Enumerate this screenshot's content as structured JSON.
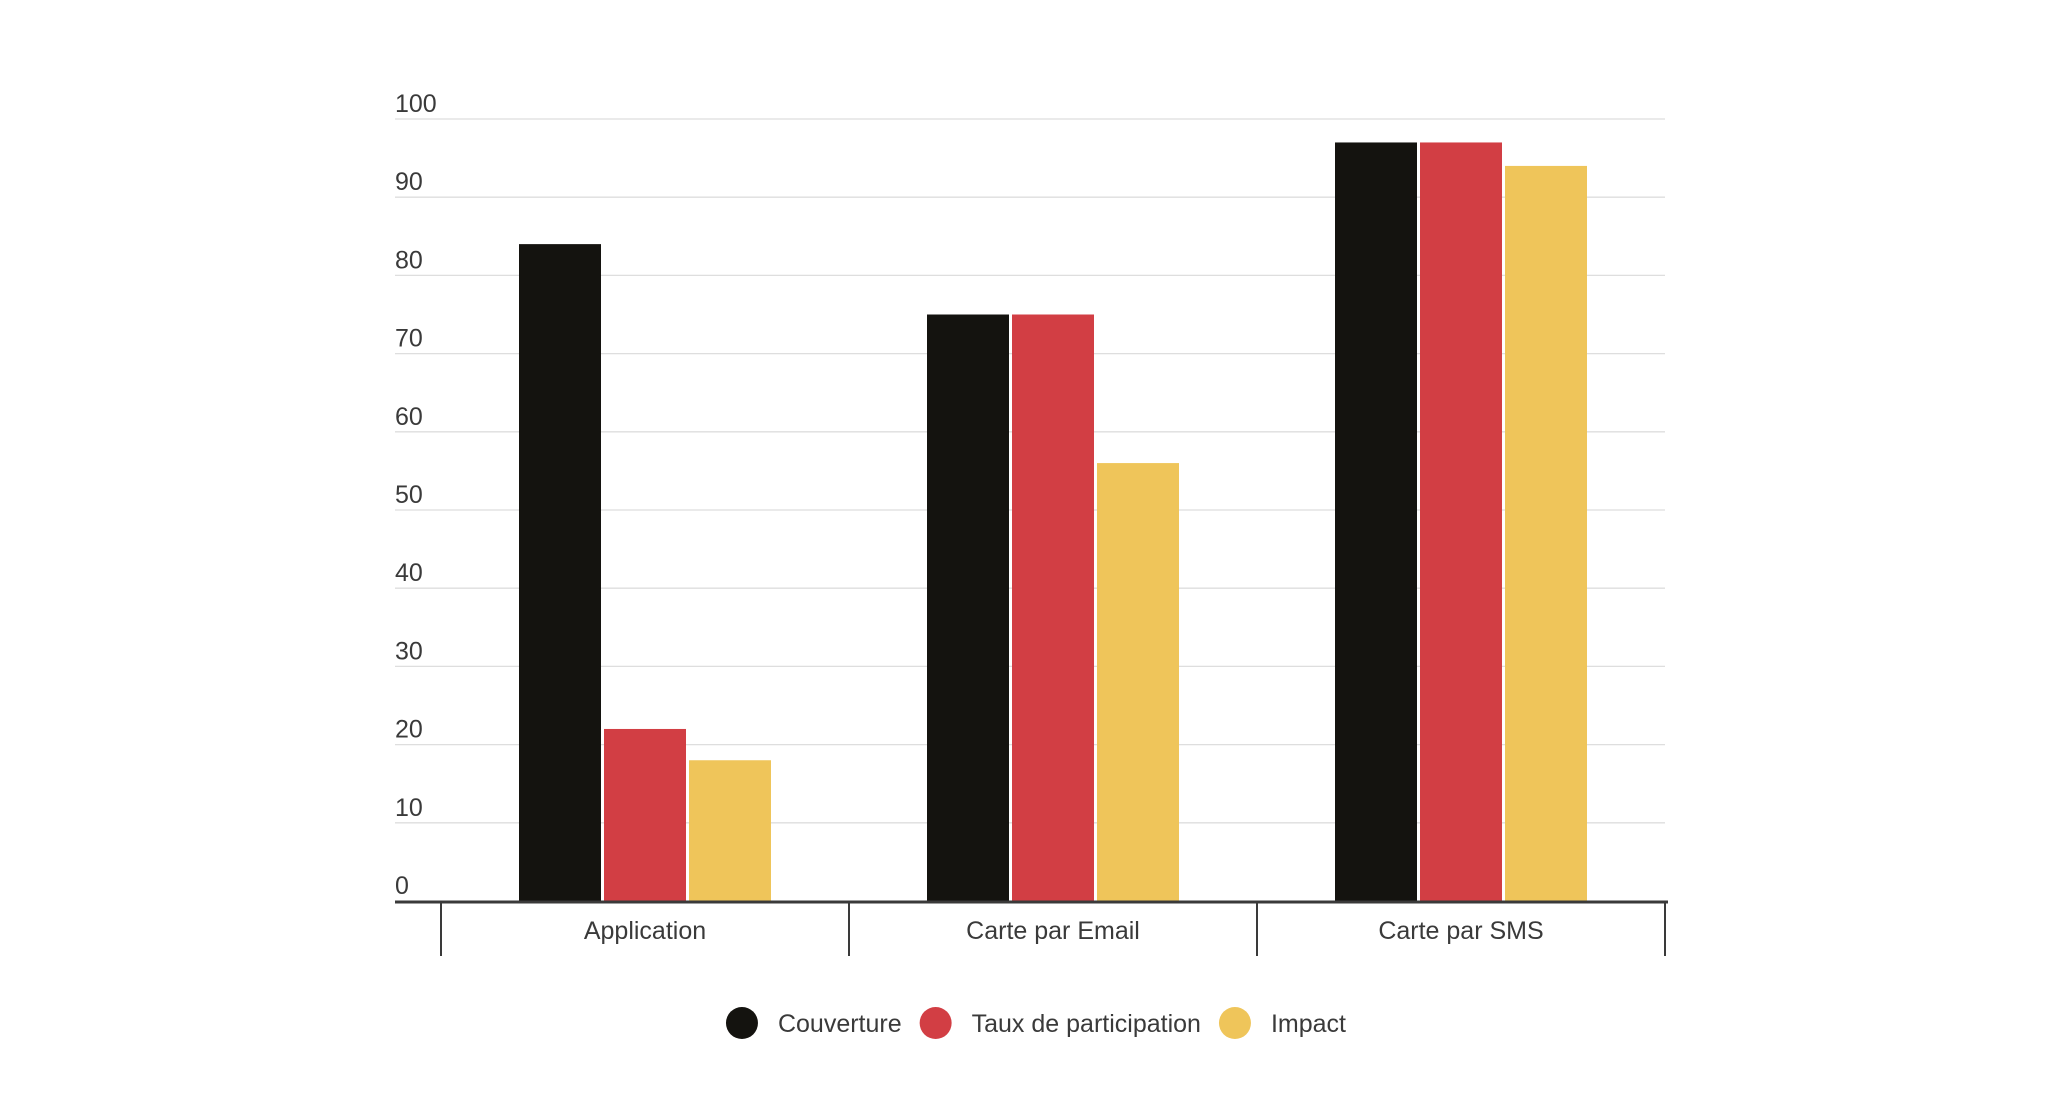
{
  "chart_data": {
    "type": "bar",
    "title": "",
    "xlabel": "",
    "ylabel": "",
    "categories": [
      "Application",
      "Carte par Email",
      "Carte par SMS"
    ],
    "series": [
      {
        "name": "Couverture",
        "color": "#14130f",
        "values": [
          84,
          75,
          97
        ]
      },
      {
        "name": "Taux de participation",
        "color": "#d23e44",
        "values": [
          22,
          75,
          97
        ]
      },
      {
        "name": "Impact",
        "color": "#efc55a",
        "values": [
          18,
          56,
          94
        ]
      }
    ],
    "ylim": [
      0,
      100
    ],
    "yticks": [
      "0",
      "10",
      "20",
      "30",
      "40",
      "50",
      "60",
      "70",
      "80",
      "90",
      "100"
    ],
    "grid": true,
    "legend_position": "bottom-center"
  }
}
